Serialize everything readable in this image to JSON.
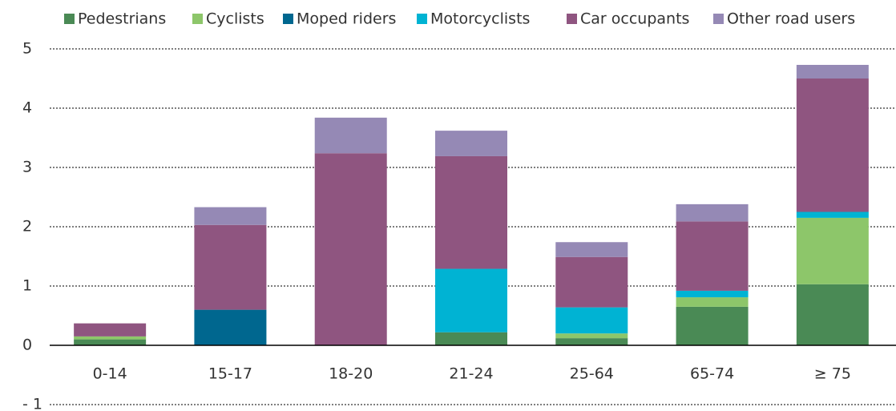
{
  "chart_data": {
    "type": "stacked_bar",
    "categories": [
      "0-14",
      "15-17",
      "18-20",
      "21-24",
      "25-64",
      "65-74",
      "≥ 75"
    ],
    "series": [
      {
        "name": "Pedestrians",
        "color": "#4a8a55",
        "values": [
          0.1,
          0,
          0,
          0.22,
          0.12,
          0.65,
          1.03
        ]
      },
      {
        "name": "Cyclists",
        "color": "#8dc66a",
        "values": [
          0.05,
          0,
          0,
          0,
          0.08,
          0.16,
          1.12
        ]
      },
      {
        "name": "Moped riders",
        "color": "#00678f",
        "values": [
          0,
          0.6,
          0,
          0,
          0,
          0,
          0
        ]
      },
      {
        "name": "Motorcyclists",
        "color": "#00b3d3",
        "values": [
          0,
          0,
          0,
          1.07,
          0.44,
          0.11,
          0.1
        ]
      },
      {
        "name": "Car occupants",
        "color": "#8f5580",
        "values": [
          0.22,
          1.43,
          3.24,
          1.9,
          0.85,
          1.17,
          2.25
        ]
      },
      {
        "name": "Other road users",
        "color": "#9589b5",
        "values": [
          0,
          0.3,
          0.6,
          0.43,
          0.25,
          0.29,
          0.23
        ]
      }
    ],
    "ylim": [
      -1,
      5
    ],
    "yticks": [
      {
        "value": -1,
        "label": "- 1"
      },
      0,
      1,
      2,
      3,
      4,
      5
    ],
    "grid": true,
    "legend": "top"
  }
}
